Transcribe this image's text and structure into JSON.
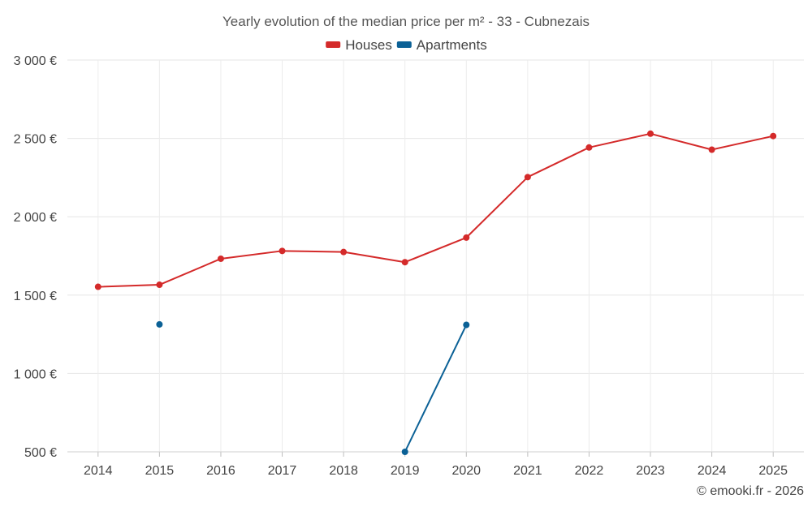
{
  "chart_data": {
    "type": "line",
    "title": "Yearly evolution of the median price per m² - 33 - Cubnezais",
    "categories": [
      "2014",
      "2015",
      "2016",
      "2017",
      "2018",
      "2019",
      "2020",
      "2021",
      "2022",
      "2023",
      "2024",
      "2025"
    ],
    "y_tick_labels": [
      "500 €",
      "1 000 €",
      "1 500 €",
      "2 000 €",
      "2 500 €",
      "3 000 €"
    ],
    "y_ticks": [
      500,
      1000,
      1500,
      2000,
      2500,
      3000
    ],
    "ylim": [
      500,
      3000
    ],
    "xlabel": "",
    "ylabel": "",
    "grid": true,
    "legend_position": "top-center",
    "series": [
      {
        "name": "Houses",
        "color": "#d42a2a",
        "values": [
          1553,
          1566,
          1732,
          1782,
          1775,
          1710,
          1867,
          2253,
          2442,
          2530,
          2428,
          2515
        ]
      },
      {
        "name": "Apartments",
        "color": "#0b6196",
        "values": [
          null,
          1313,
          null,
          null,
          null,
          500,
          1310,
          null,
          null,
          null,
          null,
          null
        ]
      }
    ]
  },
  "credit": "© emooki.fr - 2026"
}
